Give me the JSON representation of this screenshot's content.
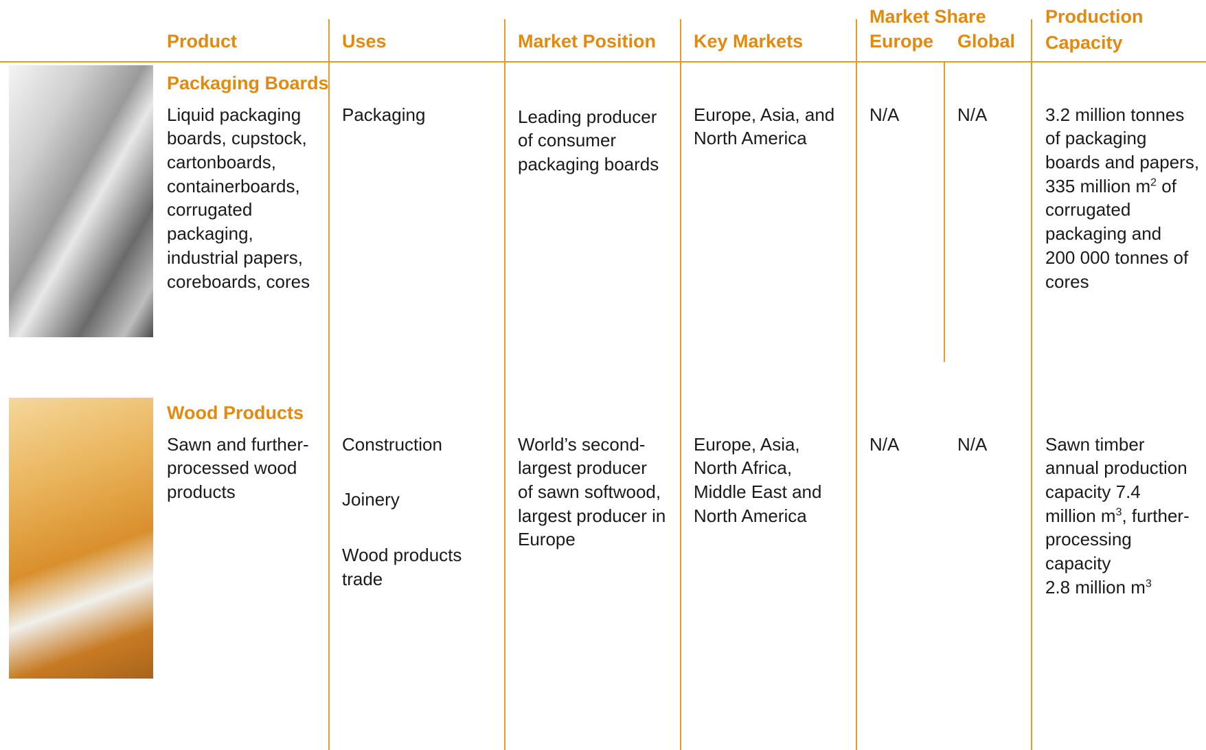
{
  "header": {
    "product": "Product",
    "uses": "Uses",
    "market_position": "Market Position",
    "key_markets": "Key Markets",
    "market_share": "Market Share",
    "europe": "Europe",
    "global": "Global",
    "production_capacity": "Production Capacity"
  },
  "rows": [
    {
      "name": "Packaging Boards",
      "product": [
        "Liquid packaging",
        "boards, cupstock,",
        "cartonboards,",
        "containerboards,",
        "corrugated",
        "packaging,",
        "industrial papers,",
        "coreboards, cores"
      ],
      "uses": [
        "Packaging"
      ],
      "market_position": [
        "Leading producer",
        "of consumer",
        "packaging boards"
      ],
      "key_markets": [
        "Europe, Asia,  and",
        "North America"
      ],
      "europe": "N/A",
      "global": "N/A",
      "capacity": [
        "3.2 million tonnes",
        "of packaging",
        "boards and papers,",
        {
          "text": "335 million m",
          "sup": "2",
          "after": " of"
        },
        "corrugated",
        "packaging and",
        "200 000 tonnes of",
        "cores"
      ]
    },
    {
      "name": "Wood  Products",
      "product": [
        "Sawn and further-",
        "processed wood",
        "products"
      ],
      "uses": [
        "Construction",
        "Joinery",
        "Wood products trade"
      ],
      "market_position": [
        "World’s second-",
        "largest producer",
        "of sawn softwood,",
        "largest producer in",
        "Europe"
      ],
      "key_markets": [
        "Europe, Asia,",
        "North Africa,",
        "Middle East and",
        "North America"
      ],
      "europe": "N/A",
      "global": "N/A",
      "capacity": [
        "Sawn timber",
        "annual production",
        "capacity 7.4",
        {
          "text": "million m",
          "sup": "3",
          "after": ", further-"
        },
        "processing",
        "capacity",
        {
          "text": "2.8 million m",
          "sup": "3",
          "after": ""
        }
      ]
    }
  ]
}
